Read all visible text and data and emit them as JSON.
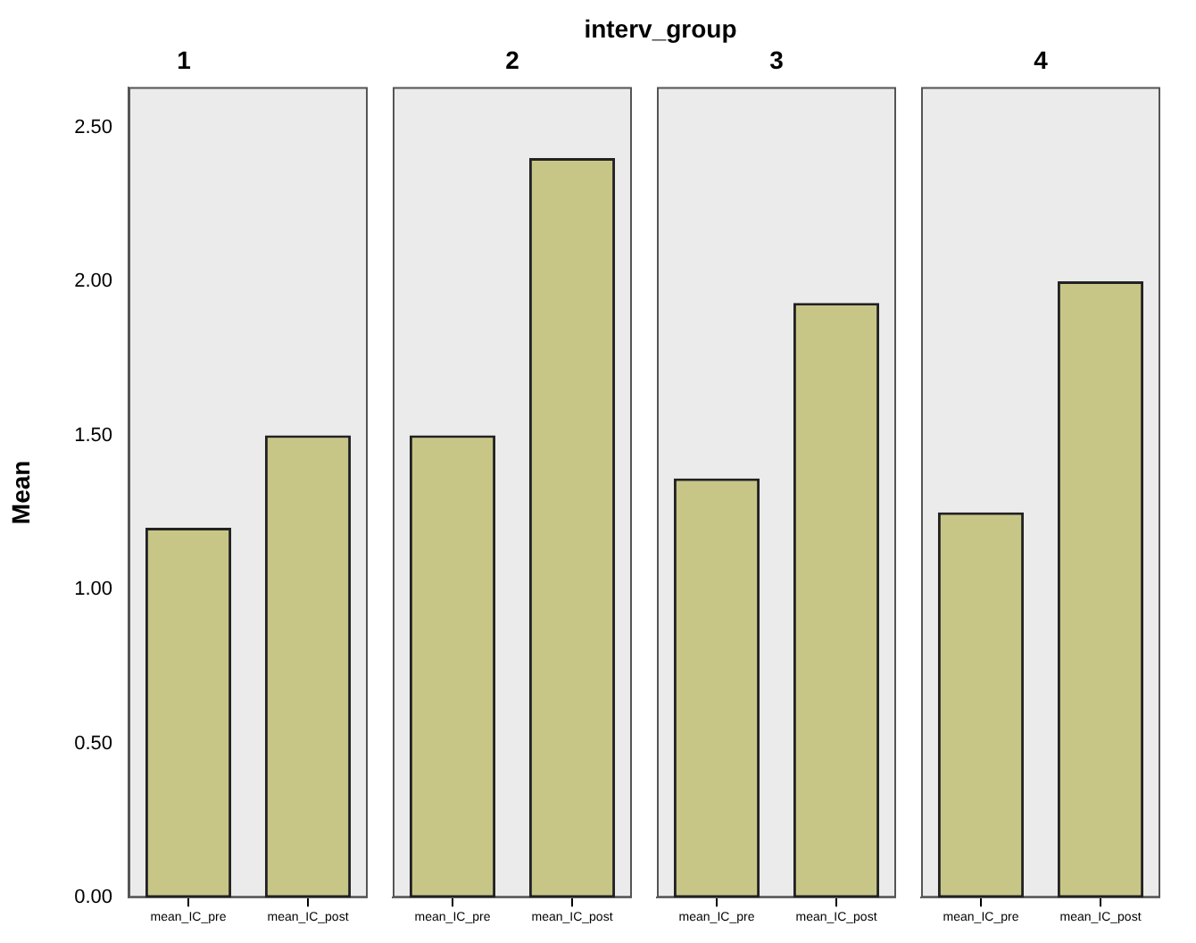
{
  "chart_data": [
    {
      "type": "bar",
      "title": "1",
      "ylabel": "Mean",
      "annotations": [
        "interv_group"
      ],
      "categories": [
        "mean_IC_pre",
        "mean_IC_post"
      ],
      "values": [
        1.2,
        1.5
      ],
      "color": "#c8c686",
      "ylim": [
        0,
        2.63
      ],
      "yticks": [
        {
          "value": 0,
          "label": "0.00"
        },
        {
          "value": 0.5,
          "label": "0.50"
        },
        {
          "value": 1,
          "label": "1.00"
        },
        {
          "value": 1.5,
          "label": "1.50"
        },
        {
          "value": 2,
          "label": "2.00"
        },
        {
          "value": 2.5,
          "label": "2.50"
        }
      ]
    },
    {
      "type": "bar",
      "title": "2",
      "categories": [
        "mean_IC_pre",
        "mean_IC_post"
      ],
      "values": [
        1.5,
        2.4
      ],
      "color": "#c8c686",
      "ylim": [
        0,
        2.63
      ],
      "tick_labels": "x"
    },
    {
      "type": "bar",
      "title": "3",
      "categories": [
        "mean_IC_pre",
        "mean_IC_post"
      ],
      "values": [
        1.36,
        1.93
      ],
      "color": "#c8c686",
      "ylim": [
        0,
        2.63
      ],
      "tick_labels": "x"
    },
    {
      "type": "bar",
      "title": "4",
      "categories": [
        "mean_IC_pre",
        "mean_IC_post"
      ],
      "values": [
        1.25,
        2.0
      ],
      "color": "#c8c686",
      "ylim": [
        0,
        2.63
      ],
      "tick_labels": "x"
    }
  ]
}
